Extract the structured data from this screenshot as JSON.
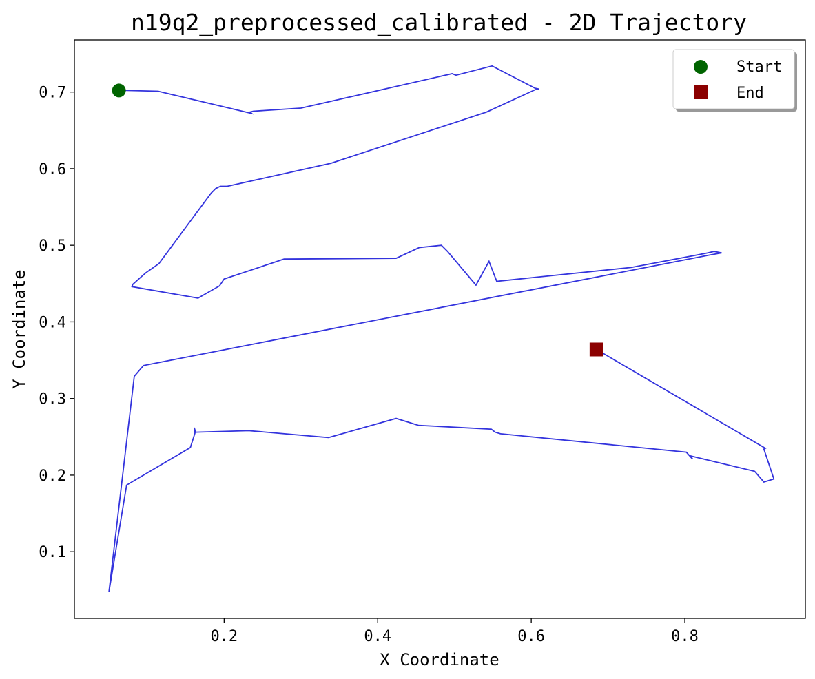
{
  "chart_data": {
    "type": "line",
    "title": "n19q2_preprocessed_calibrated - 2D Trajectory",
    "xlabel": "X Coordinate",
    "ylabel": "Y Coordinate",
    "xlim": [
      0.005,
      0.957
    ],
    "ylim": [
      0.013,
      0.768
    ],
    "xticks": [
      0.2,
      0.4,
      0.6,
      0.8
    ],
    "yticks": [
      0.1,
      0.2,
      0.3,
      0.4,
      0.5,
      0.6,
      0.7
    ],
    "xtick_labels": [
      "0.2",
      "0.4",
      "0.6",
      "0.8"
    ],
    "ytick_labels": [
      "0.1",
      "0.2",
      "0.3",
      "0.4",
      "0.5",
      "0.6",
      "0.7"
    ],
    "grid": false,
    "legend_position": "top-right",
    "series": [
      {
        "name": "Trajectory",
        "color": "#3333dd",
        "x": [
          0.063,
          0.073,
          0.114,
          0.236,
          0.234,
          0.238,
          0.3,
          0.497,
          0.502,
          0.549,
          0.605,
          0.61,
          0.605,
          0.542,
          0.339,
          0.204,
          0.195,
          0.189,
          0.183,
          0.115,
          0.098,
          0.09,
          0.081,
          0.08,
          0.166,
          0.194,
          0.2,
          0.278,
          0.424,
          0.454,
          0.483,
          0.491,
          0.528,
          0.545,
          0.555,
          0.73,
          0.83,
          0.838,
          0.848,
          0.831,
          0.095,
          0.083,
          0.05,
          0.073,
          0.156,
          0.162,
          0.161,
          0.163,
          0.232,
          0.336,
          0.424,
          0.453,
          0.548,
          0.553,
          0.56,
          0.802,
          0.81,
          0.808,
          0.812,
          0.891,
          0.903,
          0.916,
          0.903,
          0.905,
          0.685
        ],
        "y": [
          0.702,
          0.702,
          0.701,
          0.672,
          0.674,
          0.675,
          0.679,
          0.724,
          0.722,
          0.734,
          0.705,
          0.704,
          0.703,
          0.674,
          0.607,
          0.577,
          0.577,
          0.574,
          0.568,
          0.476,
          0.464,
          0.457,
          0.449,
          0.446,
          0.431,
          0.447,
          0.456,
          0.482,
          0.483,
          0.497,
          0.5,
          0.492,
          0.448,
          0.479,
          0.453,
          0.471,
          0.49,
          0.492,
          0.49,
          0.487,
          0.343,
          0.329,
          0.048,
          0.187,
          0.236,
          0.255,
          0.262,
          0.256,
          0.258,
          0.249,
          0.274,
          0.265,
          0.26,
          0.256,
          0.254,
          0.23,
          0.221,
          0.225,
          0.224,
          0.205,
          0.191,
          0.195,
          0.234,
          0.235,
          0.364
        ]
      }
    ],
    "markers": [
      {
        "name": "Start",
        "shape": "circle",
        "color": "#006400",
        "x": 0.063,
        "y": 0.702
      },
      {
        "name": "End",
        "shape": "square",
        "color": "#8b0000",
        "x": 0.685,
        "y": 0.364
      }
    ]
  }
}
